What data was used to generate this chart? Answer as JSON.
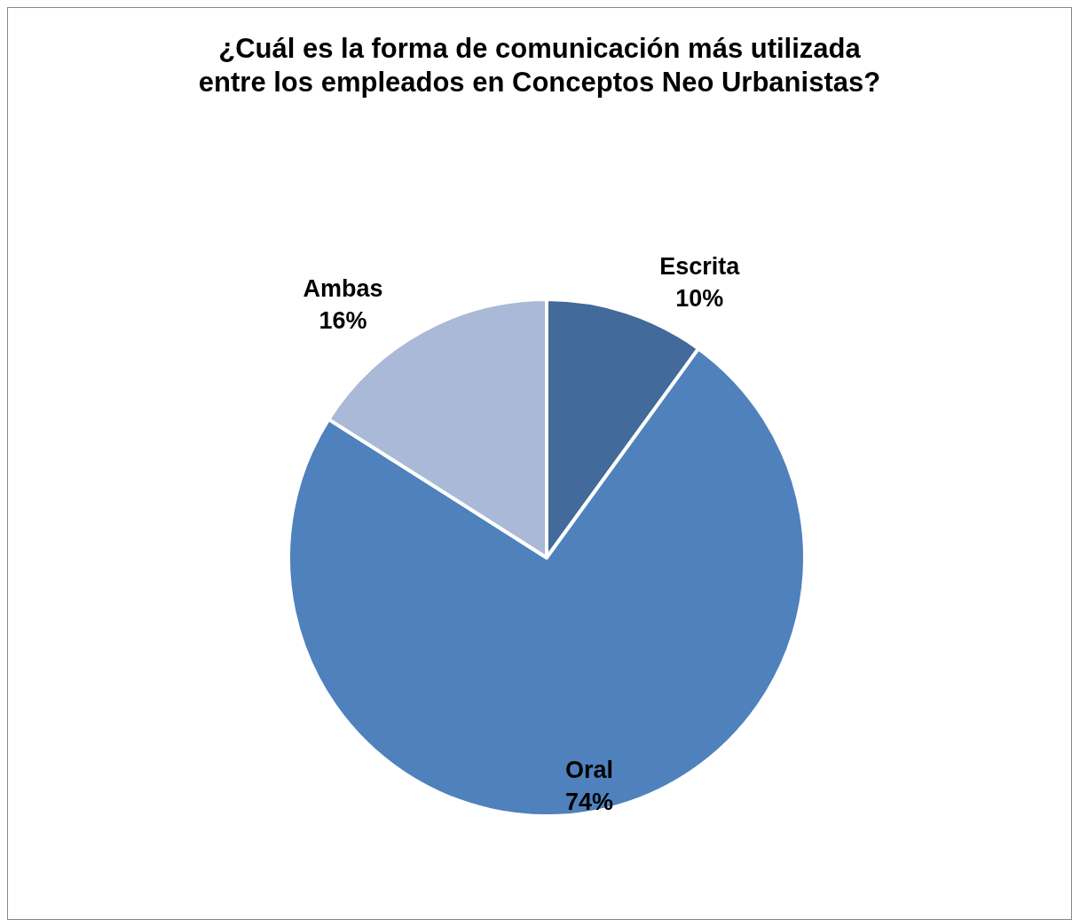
{
  "chart_data": {
    "type": "pie",
    "title": "¿Cuál es la forma de comunicación más utilizada entre los empleados en Conceptos Neo Urbanistas?",
    "categories": [
      "Escrita",
      "Oral",
      "Ambas"
    ],
    "values": [
      10,
      74,
      16
    ],
    "colors": [
      "#426a9a",
      "#4f81bd",
      "#aab9d7"
    ],
    "value_labels": [
      "10%",
      "74%",
      "16%"
    ]
  }
}
